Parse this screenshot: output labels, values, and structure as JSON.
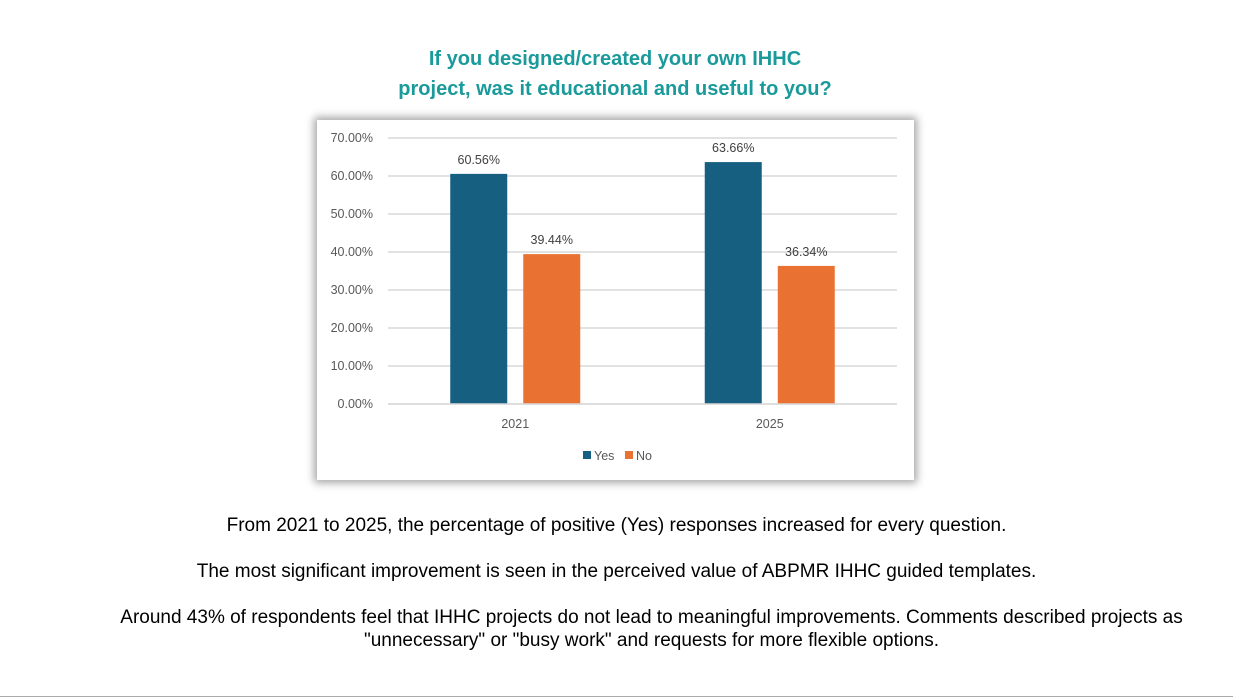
{
  "title_lines": [
    "If you designed/created your own IHHC",
    "project, was it educational and useful to you?"
  ],
  "chart_data": {
    "type": "bar",
    "title": "If you designed/created your own IHHC project, was it educational and useful to you?",
    "categories": [
      "2021",
      "2025"
    ],
    "series": [
      {
        "name": "Yes",
        "values": [
          60.56,
          63.66
        ],
        "labels": [
          "60.56%",
          "63.66%"
        ],
        "color": "#175f80"
      },
      {
        "name": "No",
        "values": [
          39.44,
          36.34
        ],
        "labels": [
          "39.44%",
          "36.34%"
        ],
        "color": "#e97132"
      }
    ],
    "ylim": [
      0,
      70
    ],
    "yticks": [
      0,
      10,
      20,
      30,
      40,
      50,
      60,
      70
    ],
    "ytick_labels": [
      "0.00%",
      "10.00%",
      "20.00%",
      "30.00%",
      "40.00%",
      "50.00%",
      "60.00%",
      "70.00%"
    ],
    "xlabel": "",
    "ylabel": "",
    "grid": true,
    "legend": "bottom-center"
  },
  "notes": [
    "From 2021 to 2025, the percentage of positive (Yes) responses increased for every question.",
    "The most significant improvement is seen in the perceived value of ABPMR IHHC guided templates.",
    "Around 43% of respondents feel that IHHC projects do not lead to meaningful improvements. Comments described projects as \"unnecessary\" or \"busy work\" and requests for more flexible options."
  ]
}
